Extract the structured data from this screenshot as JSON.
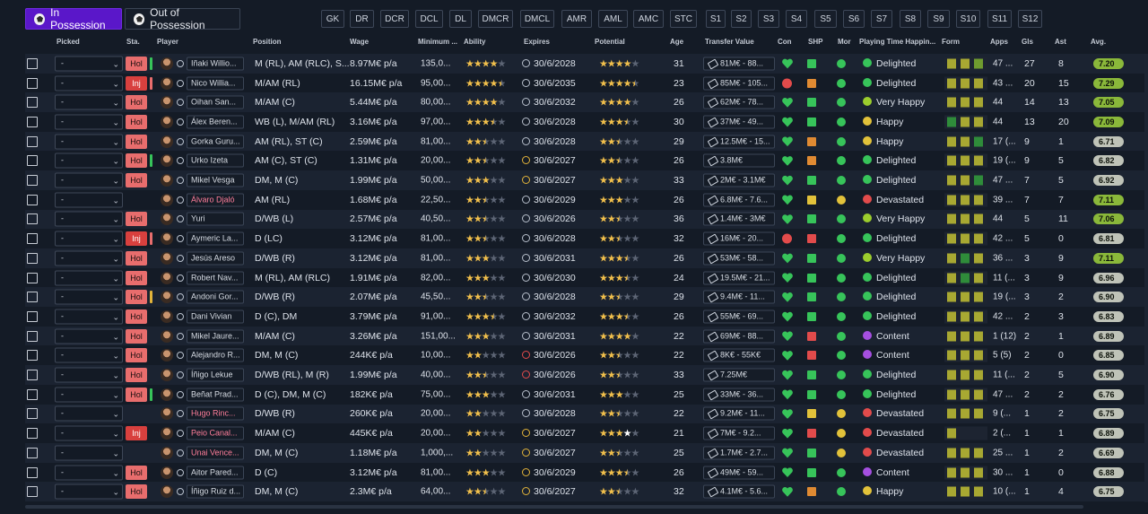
{
  "tabs": [
    {
      "label": "In Possession",
      "active": true,
      "icon": "ball-icon"
    },
    {
      "label": "Out of Possession",
      "active": false,
      "icon": "ball-icon"
    }
  ],
  "position_filters": [
    "GK",
    "DR",
    "DCR",
    "DCL",
    "DL",
    "DMCR",
    "DMCL",
    "AMR",
    "AML",
    "AMC",
    "STC",
    "S1",
    "S2",
    "S3",
    "S4",
    "S5",
    "S6",
    "S7",
    "S8",
    "S9",
    "S10",
    "S11",
    "S12"
  ],
  "columns": [
    "Picked",
    "Sta.",
    "Player",
    "Position",
    "Wage",
    "Minimum ...",
    "Ability",
    "Expires",
    "Potential",
    "Age",
    "Transfer Value",
    "Con",
    "SHP",
    "Mor",
    "Playing Time Happin...",
    "Form",
    "Apps",
    "Gls",
    "Ast",
    "Avg."
  ],
  "colors": {
    "accent": "#5a17c9",
    "hol": "#e86d6d",
    "inj": "#d8403e",
    "green": "#37c45a",
    "orange": "#e08a32",
    "red": "#e24b4b",
    "yellow": "#e2c23a",
    "purple": "#a54fe0"
  },
  "rows": [
    {
      "picked": "-",
      "sta": "Hol",
      "sbar": "#37c45a",
      "name": "Iñaki Willio...",
      "name_red": false,
      "position": "M (RL), AM (RLC), S...",
      "wage": "8.97M€ p/a",
      "min_fee": "135,0...",
      "ability": 4,
      "ability_half": false,
      "expires": "30/6/2028",
      "clock": "n",
      "potential": 4,
      "pot_half": false,
      "pot_white": false,
      "age": "31",
      "tv": "81M€ - 88...",
      "con": "heart",
      "shp": "green",
      "mor": "green",
      "happiness": "Delighted",
      "happy_face": "green",
      "form": [
        "#a8a832",
        "#a8a832",
        "#6f9b2f"
      ],
      "apps": "47 ...",
      "gls": "27",
      "ast": "8",
      "avg": "7.20",
      "avg_color": "#8ab83a"
    },
    {
      "picked": "-",
      "sta": "Inj",
      "sbar": "#e86d6d",
      "name": "Nico Willia...",
      "name_red": false,
      "position": "M/AM (RL)",
      "wage": "16.15M€ p/a",
      "min_fee": "95,00...",
      "ability": 4,
      "ability_half": true,
      "expires": "30/6/2035",
      "clock": "n",
      "potential": 4,
      "pot_half": true,
      "pot_white": false,
      "age": "23",
      "tv": "85M€ - 105...",
      "con": "cross",
      "shp": "orange",
      "mor": "green",
      "happiness": "Delighted",
      "happy_face": "green",
      "form": [
        "#a8a832",
        "#a8a832",
        "#a8a832"
      ],
      "apps": "43 ...",
      "gls": "20",
      "ast": "15",
      "avg": "7.29",
      "avg_color": "#8ab83a"
    },
    {
      "picked": "-",
      "sta": "Hol",
      "sbar": "",
      "name": "Oihan San...",
      "name_red": false,
      "position": "M/AM (C)",
      "wage": "5.44M€ p/a",
      "min_fee": "80,00...",
      "ability": 4,
      "ability_half": false,
      "expires": "30/6/2032",
      "clock": "n",
      "potential": 4,
      "pot_half": false,
      "pot_white": false,
      "age": "26",
      "tv": "62M€ - 78...",
      "con": "heart",
      "shp": "green",
      "mor": "green",
      "happiness": "Very Happy",
      "happy_face": "lime",
      "form": [
        "#a8a832",
        "#a8a832",
        "#a8a832"
      ],
      "apps": "44",
      "gls": "14",
      "ast": "13",
      "avg": "7.05",
      "avg_color": "#8ab83a"
    },
    {
      "picked": "-",
      "sta": "Hol",
      "sbar": "",
      "name": "Álex Beren...",
      "name_red": false,
      "position": "WB (L), M/AM (RL)",
      "wage": "3.16M€ p/a",
      "min_fee": "97,00...",
      "ability": 3,
      "ability_half": true,
      "expires": "30/6/2028",
      "clock": "n",
      "potential": 3,
      "pot_half": true,
      "pot_white": false,
      "age": "30",
      "tv": "37M€ - 49...",
      "con": "heart",
      "shp": "green",
      "mor": "green",
      "happiness": "Happy",
      "happy_face": "yellow",
      "form": [
        "#2f8c3a",
        "#a8a832",
        "#a8a832"
      ],
      "apps": "44",
      "gls": "13",
      "ast": "20",
      "avg": "7.09",
      "avg_color": "#8ab83a"
    },
    {
      "picked": "-",
      "sta": "Hol",
      "sbar": "",
      "name": "Gorka Guru...",
      "name_red": false,
      "position": "AM (RL), ST (C)",
      "wage": "2.59M€ p/a",
      "min_fee": "81,00...",
      "ability": 2,
      "ability_half": true,
      "expires": "30/6/2028",
      "clock": "n",
      "potential": 2,
      "pot_half": true,
      "pot_white": false,
      "age": "29",
      "tv": "12.5M€ - 15...",
      "con": "heart",
      "shp": "orange",
      "mor": "green",
      "happiness": "Happy",
      "happy_face": "yellow",
      "form": [
        "#a8a832",
        "#a8a832",
        "#2f8c3a"
      ],
      "apps": "17 (...",
      "gls": "9",
      "ast": "1",
      "avg": "6.71",
      "avg_color": "#bfc3b8"
    },
    {
      "picked": "-",
      "sta": "Hol",
      "sbar": "#37c45a",
      "name": "Urko Izeta",
      "name_red": false,
      "position": "AM (C), ST (C)",
      "wage": "1.31M€ p/a",
      "min_fee": "20,00...",
      "ability": 2,
      "ability_half": true,
      "expires": "30/6/2027",
      "clock": "y",
      "potential": 2,
      "pot_half": true,
      "pot_white": false,
      "age": "26",
      "tv": "3.8M€",
      "con": "heart",
      "shp": "orange",
      "mor": "green",
      "happiness": "Delighted",
      "happy_face": "green",
      "form": [
        "#a8a832",
        "#a8a832",
        "#a8a832"
      ],
      "apps": "19 (...",
      "gls": "9",
      "ast": "5",
      "avg": "6.82",
      "avg_color": "#bfc3b8"
    },
    {
      "picked": "-",
      "sta": "Hol",
      "sbar": "",
      "name": "Mikel Vesga",
      "name_red": false,
      "position": "DM, M (C)",
      "wage": "1.99M€ p/a",
      "min_fee": "50,00...",
      "ability": 3,
      "ability_half": false,
      "expires": "30/6/2027",
      "clock": "y",
      "potential": 3,
      "pot_half": false,
      "pot_white": false,
      "age": "33",
      "tv": "2M€ - 3.1M€",
      "con": "heart",
      "shp": "green",
      "mor": "green",
      "happiness": "Delighted",
      "happy_face": "green",
      "form": [
        "#a8a832",
        "#a8a832",
        "#2f8c3a"
      ],
      "apps": "47 ...",
      "gls": "7",
      "ast": "5",
      "avg": "6.92",
      "avg_color": "#bfc3b8"
    },
    {
      "picked": "-",
      "sta": "",
      "sbar": "",
      "name": "Álvaro Djaló",
      "name_red": true,
      "position": "AM (RL)",
      "wage": "1.68M€ p/a",
      "min_fee": "22,50...",
      "ability": 2,
      "ability_half": true,
      "expires": "30/6/2029",
      "clock": "n",
      "potential": 3,
      "pot_half": false,
      "pot_white": false,
      "age": "26",
      "tv": "6.8M€ - 7.6...",
      "con": "heart",
      "shp": "yellow",
      "mor": "yellow",
      "happiness": "Devastated",
      "happy_face": "red",
      "form": [
        "#a8a832",
        "#a8a832",
        "#a8a832"
      ],
      "apps": "39 ...",
      "gls": "7",
      "ast": "7",
      "avg": "7.11",
      "avg_color": "#8ab83a"
    },
    {
      "picked": "-",
      "sta": "Hol",
      "sbar": "",
      "name": "Yuri",
      "name_red": false,
      "position": "D/WB (L)",
      "wage": "2.57M€ p/a",
      "min_fee": "40,50...",
      "ability": 2,
      "ability_half": true,
      "expires": "30/6/2026",
      "clock": "n",
      "potential": 2,
      "pot_half": true,
      "pot_white": false,
      "age": "36",
      "tv": "1.4M€ - 3M€",
      "con": "heart",
      "shp": "green",
      "mor": "green",
      "happiness": "Very Happy",
      "happy_face": "lime",
      "form": [
        "#a8a832",
        "#a8a832",
        "#a8a832"
      ],
      "apps": "44",
      "gls": "5",
      "ast": "11",
      "avg": "7.06",
      "avg_color": "#8ab83a"
    },
    {
      "picked": "-",
      "sta": "Inj",
      "sbar": "#e86d6d",
      "name": "Aymeric La...",
      "name_red": false,
      "position": "D (LC)",
      "wage": "3.12M€ p/a",
      "min_fee": "81,00...",
      "ability": 2,
      "ability_half": true,
      "expires": "30/6/2028",
      "clock": "n",
      "potential": 2,
      "pot_half": true,
      "pot_white": false,
      "age": "32",
      "tv": "16M€ - 20...",
      "con": "cross",
      "shp": "red",
      "mor": "green",
      "happiness": "Delighted",
      "happy_face": "green",
      "form": [
        "#a8a832",
        "#a8a832",
        "#a8a832"
      ],
      "apps": "42 ...",
      "gls": "5",
      "ast": "0",
      "avg": "6.81",
      "avg_color": "#bfc3b8"
    },
    {
      "picked": "-",
      "sta": "Hol",
      "sbar": "",
      "name": "Jesús Areso",
      "name_red": false,
      "position": "D/WB (R)",
      "wage": "3.12M€ p/a",
      "min_fee": "81,00...",
      "ability": 3,
      "ability_half": false,
      "expires": "30/6/2031",
      "clock": "n",
      "potential": 3,
      "pot_half": true,
      "pot_white": false,
      "age": "26",
      "tv": "53M€ - 58...",
      "con": "heart",
      "shp": "green",
      "mor": "green",
      "happiness": "Very Happy",
      "happy_face": "lime",
      "form": [
        "#a8a832",
        "#2f8c3a",
        "#a8a832"
      ],
      "apps": "36 ...",
      "gls": "3",
      "ast": "9",
      "avg": "7.11",
      "avg_color": "#8ab83a"
    },
    {
      "picked": "-",
      "sta": "Hol",
      "sbar": "",
      "name": "Robert Nav...",
      "name_red": false,
      "position": "M (RL), AM (RLC)",
      "wage": "1.91M€ p/a",
      "min_fee": "82,00...",
      "ability": 3,
      "ability_half": false,
      "expires": "30/6/2030",
      "clock": "n",
      "potential": 3,
      "pot_half": true,
      "pot_white": false,
      "age": "24",
      "tv": "19.5M€ - 21...",
      "con": "heart",
      "shp": "green",
      "mor": "green",
      "happiness": "Delighted",
      "happy_face": "green",
      "form": [
        "#a8a832",
        "#2f8c3a",
        "#a8a832"
      ],
      "apps": "11 (...",
      "gls": "3",
      "ast": "9",
      "avg": "6.96",
      "avg_color": "#bfc3b8"
    },
    {
      "picked": "-",
      "sta": "Hol",
      "sbar": "#e2b33a",
      "name": "Andoni Gor...",
      "name_red": false,
      "position": "D/WB (R)",
      "wage": "2.07M€ p/a",
      "min_fee": "45,50...",
      "ability": 2,
      "ability_half": true,
      "expires": "30/6/2028",
      "clock": "n",
      "potential": 2,
      "pot_half": true,
      "pot_white": false,
      "age": "29",
      "tv": "9.4M€ - 11...",
      "con": "heart",
      "shp": "green",
      "mor": "green",
      "happiness": "Delighted",
      "happy_face": "green",
      "form": [
        "#a8a832",
        "#a8a832",
        "#a8a832"
      ],
      "apps": "19 (...",
      "gls": "3",
      "ast": "2",
      "avg": "6.90",
      "avg_color": "#bfc3b8"
    },
    {
      "picked": "-",
      "sta": "Hol",
      "sbar": "",
      "name": "Dani Vivian",
      "name_red": false,
      "position": "D (C), DM",
      "wage": "3.79M€ p/a",
      "min_fee": "91,00...",
      "ability": 3,
      "ability_half": true,
      "expires": "30/6/2032",
      "clock": "n",
      "potential": 3,
      "pot_half": true,
      "pot_white": false,
      "age": "26",
      "tv": "55M€ - 69...",
      "con": "heart",
      "shp": "green",
      "mor": "green",
      "happiness": "Delighted",
      "happy_face": "green",
      "form": [
        "#a8a832",
        "#a8a832",
        "#a8a832"
      ],
      "apps": "42 ...",
      "gls": "2",
      "ast": "3",
      "avg": "6.83",
      "avg_color": "#bfc3b8"
    },
    {
      "picked": "-",
      "sta": "Hol",
      "sbar": "",
      "name": "Mikel Jaure...",
      "name_red": false,
      "position": "M/AM (C)",
      "wage": "3.26M€ p/a",
      "min_fee": "151,00...",
      "ability": 3,
      "ability_half": false,
      "expires": "30/6/2031",
      "clock": "n",
      "potential": 4,
      "pot_half": false,
      "pot_white": false,
      "age": "22",
      "tv": "69M€ - 88...",
      "con": "heart",
      "shp": "red",
      "mor": "green",
      "happiness": "Content",
      "happy_face": "purple",
      "form": [
        "#a8a832",
        "#a8a832",
        "#a8a832"
      ],
      "apps": "1 (12)",
      "gls": "2",
      "ast": "1",
      "avg": "6.89",
      "avg_color": "#bfc3b8"
    },
    {
      "picked": "-",
      "sta": "Hol",
      "sbar": "",
      "name": "Alejandro R...",
      "name_red": false,
      "position": "DM, M (C)",
      "wage": "244K€ p/a",
      "min_fee": "10,00...",
      "ability": 2,
      "ability_half": false,
      "expires": "30/6/2026",
      "clock": "r",
      "potential": 2,
      "pot_half": true,
      "pot_white": false,
      "age": "22",
      "tv": "8K€ - 55K€",
      "con": "heart",
      "shp": "red",
      "mor": "green",
      "happiness": "Content",
      "happy_face": "purple",
      "form": [
        "#a8a832",
        "#a8a832",
        "#a8a832"
      ],
      "apps": "5 (5)",
      "gls": "2",
      "ast": "0",
      "avg": "6.85",
      "avg_color": "#bfc3b8"
    },
    {
      "picked": "-",
      "sta": "Hol",
      "sbar": "",
      "name": "Íñigo Lekue",
      "name_red": false,
      "position": "D/WB (RL), M (R)",
      "wage": "1.99M€ p/a",
      "min_fee": "40,00...",
      "ability": 2,
      "ability_half": true,
      "expires": "30/6/2026",
      "clock": "r",
      "potential": 2,
      "pot_half": true,
      "pot_white": false,
      "age": "33",
      "tv": "7.25M€",
      "con": "heart",
      "shp": "green",
      "mor": "green",
      "happiness": "Delighted",
      "happy_face": "green",
      "form": [
        "#a8a832",
        "#a8a832",
        "#a8a832"
      ],
      "apps": "11 (...",
      "gls": "2",
      "ast": "5",
      "avg": "6.90",
      "avg_color": "#bfc3b8"
    },
    {
      "picked": "-",
      "sta": "Hol",
      "sbar": "#37c45a",
      "name": "Beñat Prad...",
      "name_red": false,
      "position": "D (C), DM, M (C)",
      "wage": "182K€ p/a",
      "min_fee": "75,00...",
      "ability": 3,
      "ability_half": false,
      "expires": "30/6/2031",
      "clock": "n",
      "potential": 3,
      "pot_half": false,
      "pot_white": false,
      "age": "25",
      "tv": "33M€ - 36...",
      "con": "heart",
      "shp": "green",
      "mor": "green",
      "happiness": "Delighted",
      "happy_face": "green",
      "form": [
        "#a8a832",
        "#a8a832",
        "#a8a832"
      ],
      "apps": "47 ...",
      "gls": "2",
      "ast": "2",
      "avg": "6.76",
      "avg_color": "#bfc3b8"
    },
    {
      "picked": "-",
      "sta": "",
      "sbar": "",
      "name": "Hugo Rinc...",
      "name_red": true,
      "position": "D/WB (R)",
      "wage": "260K€ p/a",
      "min_fee": "20,00...",
      "ability": 2,
      "ability_half": false,
      "expires": "30/6/2028",
      "clock": "n",
      "potential": 2,
      "pot_half": true,
      "pot_white": false,
      "age": "22",
      "tv": "9.2M€ - 11...",
      "con": "heart",
      "shp": "yellow",
      "mor": "yellow",
      "happiness": "Devastated",
      "happy_face": "red",
      "form": [
        "#a8a832",
        "#a8a832",
        "#a8a832"
      ],
      "apps": "9 (...",
      "gls": "1",
      "ast": "2",
      "avg": "6.75",
      "avg_color": "#bfc3b8"
    },
    {
      "picked": "-",
      "sta": "Inj",
      "sbar": "",
      "name": "Peio Canal...",
      "name_red": true,
      "position": "M/AM (C)",
      "wage": "445K€ p/a",
      "min_fee": "20,00...",
      "ability": 2,
      "ability_half": false,
      "expires": "30/6/2027",
      "clock": "y",
      "potential": 3,
      "pot_half": false,
      "pot_white": true,
      "age": "21",
      "tv": "7M€ - 9.2...",
      "con": "heart",
      "shp": "red",
      "mor": "yellow",
      "happiness": "Devastated",
      "happy_face": "red",
      "form": [
        "#a8a832"
      ],
      "apps": "2 (...",
      "gls": "1",
      "ast": "1",
      "avg": "6.89",
      "avg_color": "#bfc3b8"
    },
    {
      "picked": "-",
      "sta": "",
      "sbar": "",
      "name": "Unai Vence...",
      "name_red": true,
      "position": "DM, M (C)",
      "wage": "1.18M€ p/a",
      "min_fee": "1,000,...",
      "ability": 2,
      "ability_half": false,
      "expires": "30/6/2027",
      "clock": "y",
      "potential": 2,
      "pot_half": true,
      "pot_white": false,
      "age": "25",
      "tv": "1.7M€ - 2.7...",
      "con": "heart",
      "shp": "green",
      "mor": "yellow",
      "happiness": "Devastated",
      "happy_face": "red",
      "form": [
        "#a8a832",
        "#a8a832",
        "#a8a832"
      ],
      "apps": "25 ...",
      "gls": "1",
      "ast": "2",
      "avg": "6.69",
      "avg_color": "#bfc3b8"
    },
    {
      "picked": "-",
      "sta": "Hol",
      "sbar": "",
      "name": "Aitor Pared...",
      "name_red": false,
      "position": "D (C)",
      "wage": "3.12M€ p/a",
      "min_fee": "81,00...",
      "ability": 3,
      "ability_half": false,
      "expires": "30/6/2029",
      "clock": "y",
      "potential": 3,
      "pot_half": true,
      "pot_white": false,
      "age": "26",
      "tv": "49M€ - 59...",
      "con": "heart",
      "shp": "green",
      "mor": "green",
      "happiness": "Content",
      "happy_face": "purple",
      "form": [
        "#a8a832",
        "#a8a832",
        "#a8a832"
      ],
      "apps": "30 ...",
      "gls": "1",
      "ast": "0",
      "avg": "6.88",
      "avg_color": "#bfc3b8"
    },
    {
      "picked": "-",
      "sta": "Hol",
      "sbar": "",
      "name": "Íñigo Ruiz d...",
      "name_red": false,
      "position": "DM, M (C)",
      "wage": "2.3M€ p/a",
      "min_fee": "64,00...",
      "ability": 2,
      "ability_half": true,
      "expires": "30/6/2027",
      "clock": "y",
      "potential": 2,
      "pot_half": true,
      "pot_white": false,
      "age": "32",
      "tv": "4.1M€ - 5.6...",
      "con": "heart",
      "shp": "orange",
      "mor": "green",
      "happiness": "Happy",
      "happy_face": "yellow",
      "form": [
        "#a8a832",
        "#a8a832",
        "#a8a832"
      ],
      "apps": "10 (...",
      "gls": "1",
      "ast": "4",
      "avg": "6.75",
      "avg_color": "#bfc3b8"
    }
  ]
}
